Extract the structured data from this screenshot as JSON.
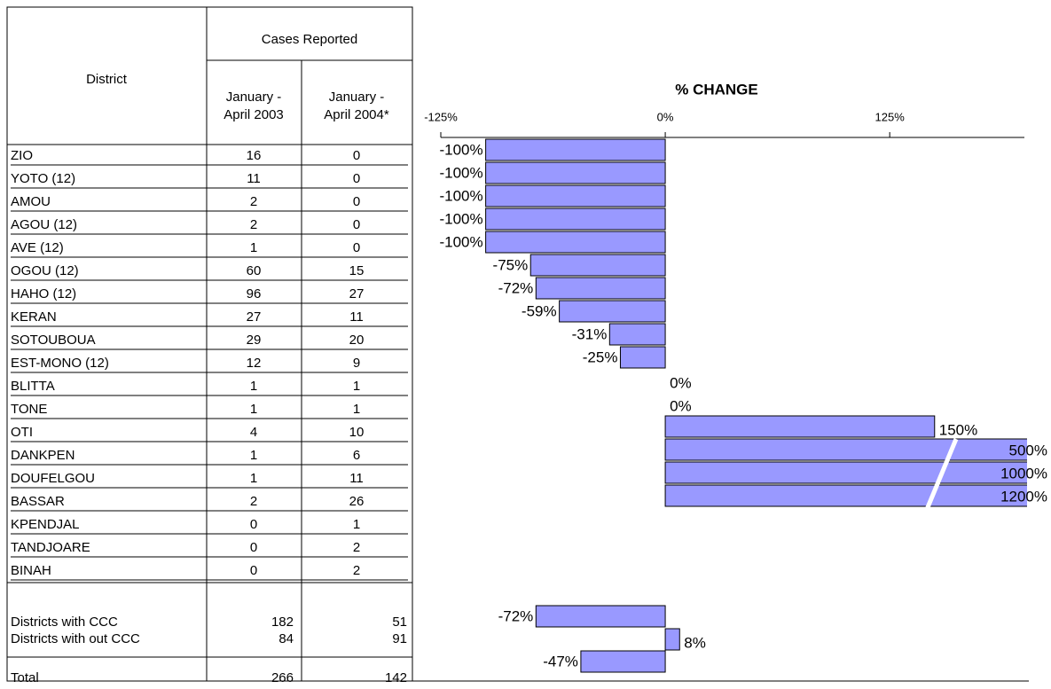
{
  "table": {
    "header": {
      "district": "District",
      "cases": "Cases Reported",
      "col1": [
        "January -",
        "April 2003"
      ],
      "col2": [
        "January -",
        "April 2004*"
      ]
    },
    "rows": [
      [
        "ZIO",
        16,
        0
      ],
      [
        "YOTO (12)",
        11,
        0
      ],
      [
        "AMOU",
        2,
        0
      ],
      [
        "AGOU (12)",
        2,
        0
      ],
      [
        "AVE (12)",
        1,
        0
      ],
      [
        "OGOU (12)",
        60,
        15
      ],
      [
        "HAHO (12)",
        96,
        27
      ],
      [
        "KERAN",
        27,
        11
      ],
      [
        "SOTOUBOUA",
        29,
        20
      ],
      [
        "EST-MONO (12)",
        12,
        9
      ],
      [
        "BLITTA",
        1,
        1
      ],
      [
        "TONE",
        1,
        1
      ],
      [
        "OTI",
        4,
        10
      ],
      [
        "DANKPEN",
        1,
        6
      ],
      [
        "DOUFELGOU",
        1,
        11
      ],
      [
        "BASSAR",
        2,
        26
      ],
      [
        "KPENDJAL",
        0,
        1
      ],
      [
        "TANDJOARE",
        0,
        2
      ],
      [
        "BINAH",
        0,
        2
      ]
    ],
    "summary": [
      [
        "Districts with CCC",
        182,
        51
      ],
      [
        "Districts with out CCC",
        84,
        91
      ],
      [
        "Total",
        266,
        142
      ]
    ]
  },
  "chart_data": {
    "type": "bar",
    "title": "% CHANGE",
    "color": "#9999ff",
    "xlim": [
      -125,
      200
    ],
    "xticks": [
      {
        "value": -125,
        "label": "-125%"
      },
      {
        "value": 0,
        "label": "0%"
      },
      {
        "value": 125,
        "label": "125%"
      }
    ],
    "values": [
      -100,
      -100,
      -100,
      -100,
      -100,
      -75,
      -72,
      -59,
      -31,
      -25,
      0,
      0,
      150,
      500,
      1000,
      1200
    ],
    "value_labels": [
      "-100%",
      "-100%",
      "-100%",
      "-100%",
      "-100%",
      "-75%",
      "-72%",
      "-59%",
      "-31%",
      "-25%",
      "0%",
      "0%",
      "150%",
      "500%",
      "1000%",
      "1200%"
    ],
    "summary_values": [
      -72,
      8,
      -47
    ],
    "summary_value_labels": [
      "-72%",
      "8%",
      "-47%"
    ]
  }
}
